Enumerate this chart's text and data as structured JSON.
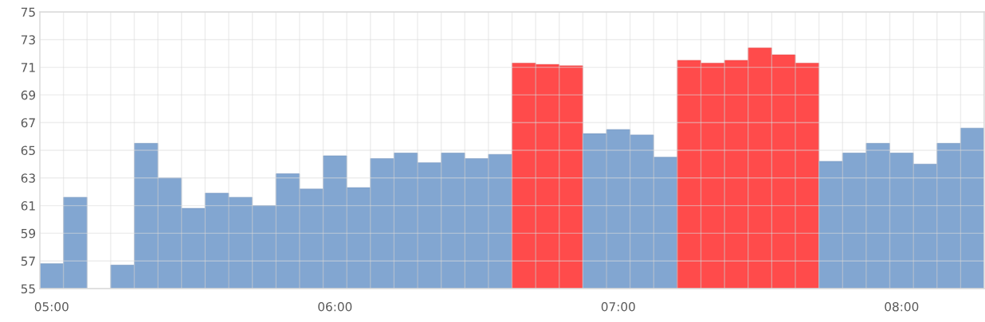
{
  "chart_data": {
    "type": "bar",
    "categories": [
      "05:00",
      null,
      null,
      null,
      null,
      null,
      null,
      null,
      null,
      null,
      null,
      null,
      "06:00",
      null,
      null,
      null,
      null,
      null,
      null,
      null,
      null,
      null,
      null,
      null,
      "07:00",
      null,
      null,
      null,
      null,
      null,
      null,
      null,
      null,
      null,
      null,
      null,
      "08:00",
      null,
      null,
      null
    ],
    "values": [
      56.8,
      61.6,
      null,
      56.7,
      65.5,
      63.0,
      60.8,
      61.9,
      61.6,
      61.0,
      63.3,
      62.2,
      64.6,
      62.3,
      64.4,
      64.8,
      64.1,
      64.8,
      64.4,
      64.7,
      71.3,
      71.2,
      71.1,
      66.2,
      66.5,
      66.1,
      64.5,
      71.5,
      71.3,
      71.5,
      72.4,
      71.9,
      71.3,
      64.2,
      64.8,
      65.5,
      64.8,
      64.0,
      65.5,
      66.6
    ],
    "colors": [
      "#82a6d1",
      "#82a6d1",
      "#82a6d1",
      "#82a6d1",
      "#82a6d1",
      "#82a6d1",
      "#82a6d1",
      "#82a6d1",
      "#82a6d1",
      "#82a6d1",
      "#82a6d1",
      "#82a6d1",
      "#82a6d1",
      "#82a6d1",
      "#82a6d1",
      "#82a6d1",
      "#82a6d1",
      "#82a6d1",
      "#82a6d1",
      "#82a6d1",
      "#ff4b4b",
      "#ff4b4b",
      "#ff4b4b",
      "#82a6d1",
      "#82a6d1",
      "#82a6d1",
      "#82a6d1",
      "#ff4b4b",
      "#ff4b4b",
      "#ff4b4b",
      "#ff4b4b",
      "#ff4b4b",
      "#ff4b4b",
      "#82a6d1",
      "#82a6d1",
      "#82a6d1",
      "#82a6d1",
      "#82a6d1",
      "#82a6d1",
      "#82a6d1"
    ],
    "ylim": [
      55,
      75
    ],
    "yticks": [
      55,
      57,
      59,
      61,
      63,
      65,
      67,
      69,
      71,
      73,
      75
    ],
    "grid": true
  }
}
